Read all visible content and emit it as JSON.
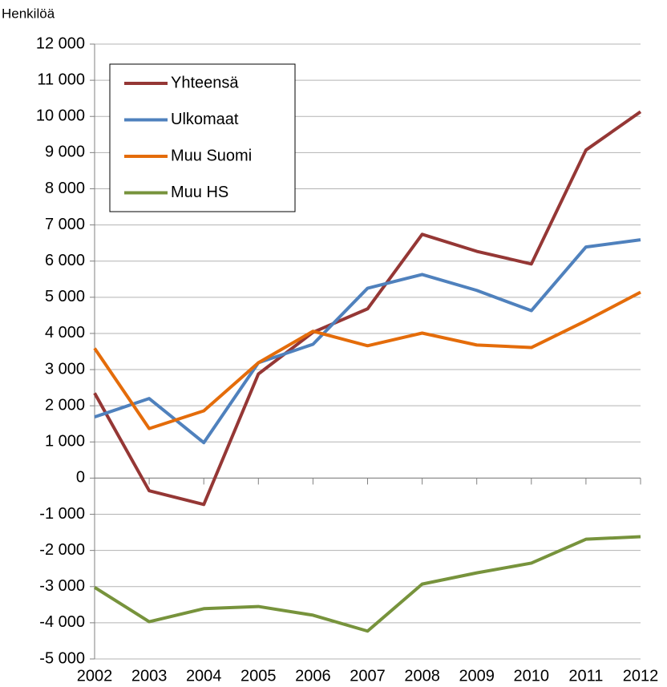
{
  "chart_data": {
    "type": "line",
    "y_label": "Henkilöä",
    "x": [
      2002,
      2003,
      2004,
      2005,
      2006,
      2007,
      2008,
      2009,
      2010,
      2011,
      2012
    ],
    "xlim": [
      2002,
      2012
    ],
    "xticks": [
      2002,
      2003,
      2004,
      2005,
      2006,
      2007,
      2008,
      2009,
      2010,
      2011,
      2012
    ],
    "ylim": [
      -5000,
      12000
    ],
    "yticks": [
      {
        "value": -5000,
        "label": "-5 000"
      },
      {
        "value": -4000,
        "label": "-4 000"
      },
      {
        "value": -3000,
        "label": "-3 000"
      },
      {
        "value": -2000,
        "label": "-2 000"
      },
      {
        "value": -1000,
        "label": "-1 000"
      },
      0,
      {
        "value": 1000,
        "label": "1 000"
      },
      {
        "value": 2000,
        "label": "2 000"
      },
      {
        "value": 3000,
        "label": "3 000"
      },
      {
        "value": 4000,
        "label": "4 000"
      },
      {
        "value": 5000,
        "label": "5 000"
      },
      {
        "value": 6000,
        "label": "6 000"
      },
      {
        "value": 7000,
        "label": "7 000"
      },
      {
        "value": 8000,
        "label": "8 000"
      },
      {
        "value": 9000,
        "label": "9 000"
      },
      {
        "value": 10000,
        "label": "10 000"
      },
      {
        "value": 11000,
        "label": "11 000"
      },
      {
        "value": 12000,
        "label": "12 000"
      }
    ],
    "grid": true,
    "legend": "upper left",
    "series": [
      {
        "name": "Yhteensä",
        "color": "#953735",
        "values": [
          2350,
          -350,
          -730,
          2880,
          4030,
          4680,
          6740,
          6270,
          5920,
          9070,
          10130
        ]
      },
      {
        "name": "Ulkomaat",
        "color": "#4f81bd",
        "values": [
          1690,
          2200,
          980,
          3190,
          3700,
          5250,
          5630,
          5190,
          4630,
          6390,
          6590
        ]
      },
      {
        "name": "Muu Suomi",
        "color": "#e46c0a",
        "values": [
          3590,
          1370,
          1860,
          3190,
          4060,
          3660,
          4010,
          3680,
          3610,
          4350,
          5140
        ]
      },
      {
        "name": "Muu HS",
        "color": "#77933c",
        "values": [
          -3020,
          -3970,
          -3610,
          -3550,
          -3790,
          -4230,
          -2930,
          -2620,
          -2350,
          -1690,
          -1620
        ]
      }
    ]
  }
}
